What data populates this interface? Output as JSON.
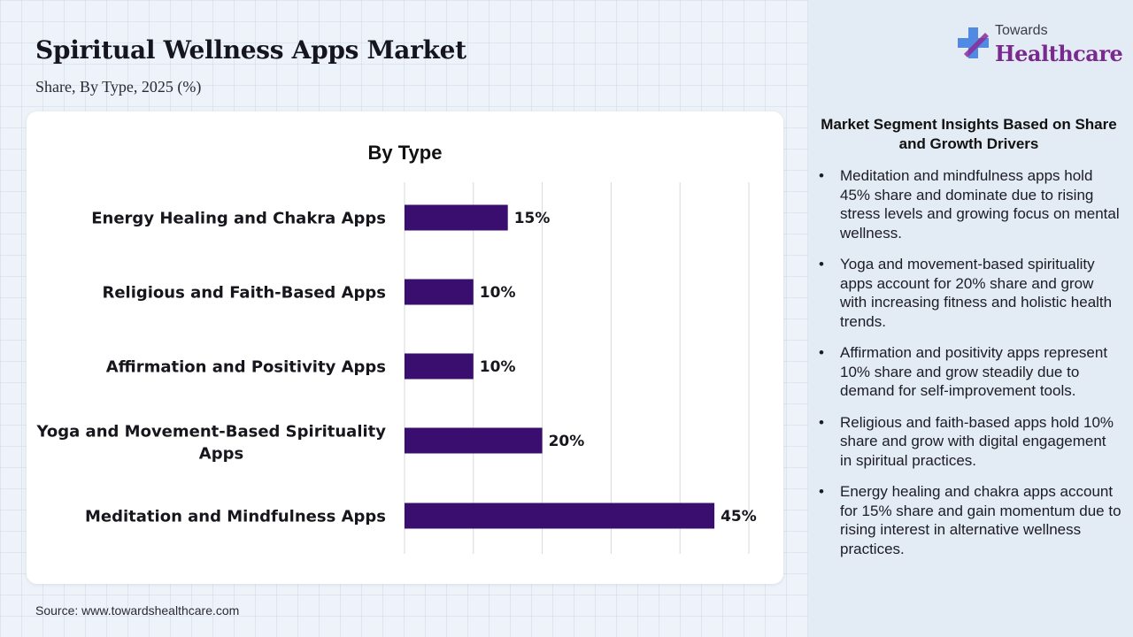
{
  "header": {
    "title": "Spiritual Wellness Apps Market",
    "subtitle": "Share, By Type, 2025 (%)"
  },
  "logo": {
    "top": "Towards",
    "main": "Healthcare",
    "colors": {
      "plus_blue": "#3f7fe0",
      "plus_purple": "#8a2c9a",
      "text": "#7a2a8e"
    }
  },
  "chart_data": {
    "type": "bar",
    "orientation": "horizontal",
    "title": "By Type",
    "categories": [
      "Energy Healing and Chakra Apps",
      "Religious and Faith-Based Apps",
      "Affirmation and Positivity Apps",
      "Yoga and Movement-Based Spirituality Apps",
      "Meditation and Mindfulness Apps"
    ],
    "values": [
      15,
      10,
      10,
      20,
      45
    ],
    "value_labels": [
      "15%",
      "10%",
      "10%",
      "20%",
      "45%"
    ],
    "xlim": [
      0,
      50
    ],
    "grid": true,
    "bar_color": "#3a0e6e"
  },
  "insights": {
    "title": "Market Segment Insights Based on Share and Growth Drivers",
    "bullet_symbol": "•",
    "items": [
      "Meditation and mindfulness apps hold 45% share and dominate due to rising stress levels and growing focus on mental wellness.",
      "Yoga and movement-based spirituality apps account for 20% share and grow with increasing fitness and holistic health trends.",
      "Affirmation and positivity apps represent 10% share and grow steadily due to demand for self-improvement tools.",
      "Religious and faith-based apps hold 10% share and grow with digital engagement in spiritual practices.",
      "Energy healing and chakra apps account for 15% share and gain momentum due to rising interest in alternative wellness practices."
    ]
  },
  "source": "Source: www.towardshealthcare.com"
}
